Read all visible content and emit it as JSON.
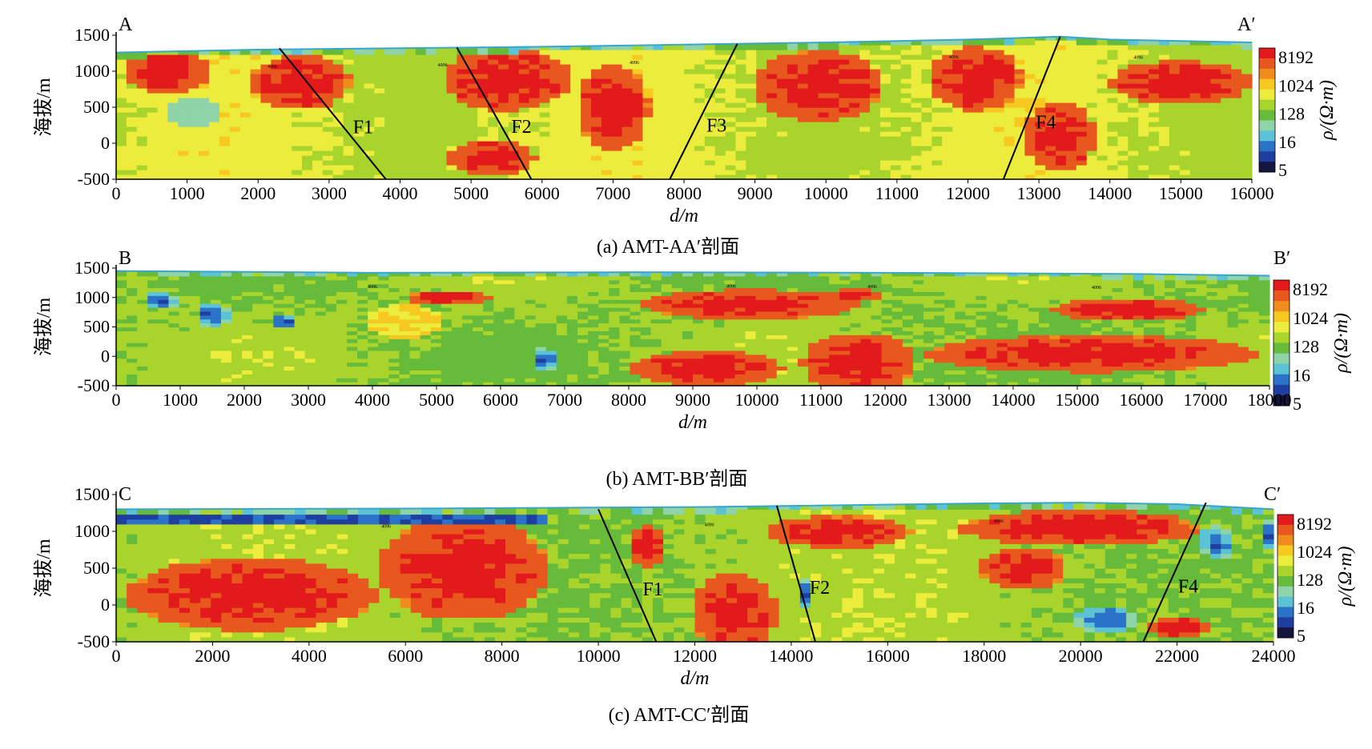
{
  "colors": {
    "scale": [
      "#15153f",
      "#1e3fa0",
      "#2b73c8",
      "#5cc3d6",
      "#8fd3a8",
      "#66bb3a",
      "#a9d42c",
      "#ecec3c",
      "#f7c81f",
      "#f08c1e",
      "#e8581e",
      "#e31a1c"
    ],
    "fault_line": "#000000"
  },
  "colorbar": {
    "ticks": [
      "8192",
      "1024",
      "128",
      "16",
      "5"
    ],
    "label": "ρ/(Ω·m)"
  },
  "panels": [
    {
      "id": "a",
      "caption": "(a) AMT-AA′剖面",
      "start_label": "A",
      "end_label": "A′",
      "xlabel": "d/m",
      "ylabel": "海拔/m",
      "x_ticks": [
        "0",
        "1000",
        "2000",
        "3000",
        "4000",
        "5000",
        "6000",
        "7000",
        "8000",
        "9000",
        "10000",
        "11000",
        "12000",
        "13000",
        "14000",
        "15000",
        "16000"
      ],
      "y_ticks": [
        "1500",
        "1000",
        "500",
        "0",
        "-500"
      ],
      "faults": [
        "F1",
        "F2",
        "F3",
        "F4"
      ],
      "contour_label": "4096"
    },
    {
      "id": "b",
      "caption": "(b) AMT-BB′剖面",
      "start_label": "B",
      "end_label": "B′",
      "xlabel": "d/m",
      "ylabel": "海拔/m",
      "x_ticks": [
        "0",
        "1000",
        "2000",
        "3000",
        "4000",
        "5000",
        "6000",
        "7000",
        "8000",
        "9000",
        "10000",
        "11000",
        "12000",
        "13000",
        "14000",
        "15000",
        "16000",
        "17000",
        "18000"
      ],
      "y_ticks": [
        "1500",
        "1000",
        "500",
        "0",
        "-500"
      ],
      "faults": [],
      "contour_label": "4096"
    },
    {
      "id": "c",
      "caption": "(c) AMT-CC′剖面",
      "start_label": "C",
      "end_label": "C′",
      "xlabel": "d/m",
      "ylabel": "海拔/m",
      "x_ticks": [
        "0",
        "2000",
        "4000",
        "6000",
        "8000",
        "10000",
        "12000",
        "14000",
        "16000",
        "18000",
        "20000",
        "22000",
        "24000"
      ],
      "y_ticks": [
        "1500",
        "1000",
        "500",
        "0",
        "-500"
      ],
      "faults": [
        "F1",
        "F2",
        "F4"
      ],
      "contour_label": "4096"
    }
  ],
  "chart_data": [
    {
      "type": "heatmap",
      "title": "(a) AMT-AA′剖面",
      "xlabel": "d/m",
      "ylabel": "海拔/m",
      "xlim": [
        0,
        16000
      ],
      "ylim": [
        -500,
        1500
      ],
      "colorbar": {
        "label": "ρ/(Ω·m)",
        "scale": "log",
        "ticks": [
          5,
          16,
          128,
          1024,
          8192
        ]
      },
      "surface": {
        "x": [
          0,
          2000,
          4000,
          6000,
          8000,
          10000,
          12000,
          13300,
          14000,
          16000
        ],
        "y": [
          1260,
          1300,
          1320,
          1340,
          1370,
          1400,
          1440,
          1480,
          1440,
          1400
        ]
      },
      "faults": [
        {
          "name": "F1",
          "top": [
            2300,
            1320
          ],
          "bottom": [
            3800,
            -500
          ]
        },
        {
          "name": "F2",
          "top": [
            4800,
            1330
          ],
          "bottom": [
            5850,
            -500
          ]
        },
        {
          "name": "F3",
          "top": [
            8750,
            1380
          ],
          "bottom": [
            7800,
            -500
          ]
        },
        {
          "name": "F4",
          "top": [
            13300,
            1480
          ],
          "bottom": [
            12500,
            -500
          ]
        }
      ]
    },
    {
      "type": "heatmap",
      "title": "(b) AMT-BB′剖面",
      "xlabel": "d/m",
      "ylabel": "海拔/m",
      "xlim": [
        0,
        18000
      ],
      "ylim": [
        -500,
        1500
      ],
      "colorbar": {
        "label": "ρ/(Ω·m)",
        "scale": "log",
        "ticks": [
          5,
          16,
          128,
          1024,
          8192
        ]
      },
      "surface": {
        "x": [
          0,
          4000,
          8000,
          12000,
          16000,
          18000
        ],
        "y": [
          1450,
          1420,
          1430,
          1420,
          1400,
          1370
        ]
      },
      "faults": []
    },
    {
      "type": "heatmap",
      "title": "(c) AMT-CC′剖面",
      "xlabel": "d/m",
      "ylabel": "海拔/m",
      "xlim": [
        0,
        24000
      ],
      "ylim": [
        -500,
        1500
      ],
      "colorbar": {
        "label": "ρ/(Ω·m)",
        "scale": "log",
        "ticks": [
          5,
          16,
          128,
          1024,
          8192
        ]
      },
      "surface": {
        "x": [
          0,
          6000,
          12000,
          18000,
          20000,
          22000,
          24000
        ],
        "y": [
          1300,
          1310,
          1330,
          1380,
          1390,
          1370,
          1300
        ]
      },
      "faults": [
        {
          "name": "F1",
          "top": [
            10000,
            1300
          ],
          "bottom": [
            11200,
            -500
          ]
        },
        {
          "name": "F2",
          "top": [
            13700,
            1350
          ],
          "bottom": [
            14500,
            -500
          ]
        },
        {
          "name": "F4",
          "top": [
            22600,
            1390
          ],
          "bottom": [
            21300,
            -500
          ]
        }
      ]
    }
  ]
}
